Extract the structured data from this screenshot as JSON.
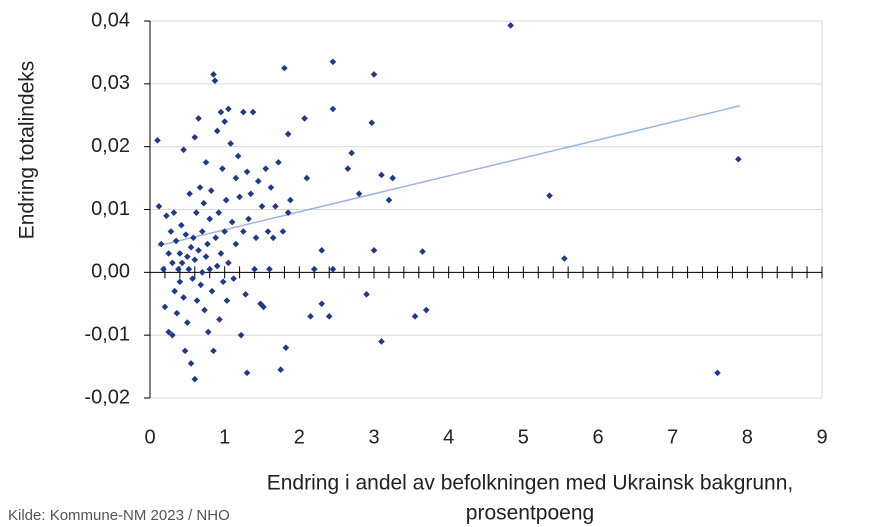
{
  "chart_data": {
    "type": "scatter",
    "ylabel": "Endring totalindeks",
    "xlabel": [
      "Endring i andel av befolkningen med Ukrainsk bakgrunn,",
      "prosentpoeng"
    ],
    "source": "Kilde: Kommune-NM 2023 / NHO",
    "color": "#1f3a8a",
    "grid": true,
    "xlim": [
      0,
      9
    ],
    "ylim": [
      -0.02,
      0.04
    ],
    "xticks": [
      0,
      1,
      2,
      3,
      4,
      5,
      6,
      7,
      8,
      9
    ],
    "x_minor_ticks": [
      0,
      0.2,
      0.4,
      0.6,
      0.8,
      1,
      1.2,
      1.4,
      1.6,
      1.8,
      2,
      2.2,
      2.4,
      2.6,
      2.8,
      3,
      3.2,
      3.4,
      3.6,
      3.8,
      4,
      4.2,
      4.4,
      4.6,
      4.8,
      5,
      5.2,
      5.4,
      5.6,
      5.8,
      6,
      6.2,
      6.4,
      6.6,
      6.8,
      7,
      7.2,
      7.4,
      7.6,
      7.8,
      8,
      8.2,
      8.4,
      8.6,
      8.8,
      9
    ],
    "yticks": [
      {
        "value": -0.02,
        "label": "-0,02"
      },
      {
        "value": -0.01,
        "label": "-0,01"
      },
      {
        "value": 0,
        "label": "0,00"
      },
      {
        "value": 0.01,
        "label": "0,01"
      },
      {
        "value": 0.02,
        "label": "0,02"
      },
      {
        "value": 0.03,
        "label": "0,03"
      },
      {
        "value": 0.04,
        "label": "0,04"
      }
    ],
    "x": [
      0.1,
      0.12,
      0.15,
      0.18,
      0.2,
      0.22,
      0.25,
      0.25,
      0.28,
      0.3,
      0.3,
      0.32,
      0.33,
      0.35,
      0.36,
      0.38,
      0.4,
      0.4,
      0.42,
      0.43,
      0.45,
      0.45,
      0.47,
      0.48,
      0.5,
      0.5,
      0.52,
      0.53,
      0.55,
      0.55,
      0.57,
      0.58,
      0.6,
      0.6,
      0.6,
      0.62,
      0.63,
      0.65,
      0.65,
      0.67,
      0.68,
      0.7,
      0.7,
      0.72,
      0.73,
      0.75,
      0.75,
      0.77,
      0.78,
      0.8,
      0.8,
      0.82,
      0.83,
      0.85,
      0.85,
      0.87,
      0.88,
      0.9,
      0.9,
      0.92,
      0.93,
      0.95,
      0.95,
      0.97,
      0.98,
      1.0,
      1.0,
      1.02,
      1.03,
      1.05,
      1.05,
      1.08,
      1.1,
      1.12,
      1.15,
      1.15,
      1.18,
      1.2,
      1.22,
      1.25,
      1.25,
      1.28,
      1.3,
      1.3,
      1.32,
      1.35,
      1.38,
      1.4,
      1.42,
      1.45,
      1.48,
      1.5,
      1.52,
      1.55,
      1.58,
      1.6,
      1.62,
      1.65,
      1.68,
      1.72,
      1.75,
      1.78,
      1.8,
      1.82,
      1.85,
      1.85,
      1.88,
      2.07,
      2.1,
      2.15,
      2.2,
      2.3,
      2.3,
      2.4,
      2.45,
      2.45,
      2.45,
      2.65,
      2.7,
      2.8,
      2.9,
      2.97,
      3.0,
      3.0,
      3.1,
      3.1,
      3.2,
      3.25,
      3.55,
      3.65,
      3.7,
      4.83,
      5.35,
      5.55,
      7.6,
      7.88
    ],
    "y": [
      0.021,
      0.0105,
      0.0045,
      0.0005,
      -0.0055,
      0.009,
      -0.0095,
      0.003,
      0.0065,
      -0.01,
      0.0015,
      0.0095,
      -0.003,
      0.005,
      -0.0065,
      0.0005,
      0.003,
      -0.0015,
      0.0075,
      0.0015,
      0.0195,
      -0.004,
      -0.0125,
      0.006,
      0.0025,
      -0.008,
      0.0005,
      0.0125,
      -0.0145,
      0.004,
      -0.001,
      0.0055,
      -0.017,
      0.0215,
      0.002,
      0.0095,
      -0.0045,
      0.0245,
      0.0035,
      0.0135,
      -0.002,
      0.0065,
      0.0,
      0.011,
      -0.006,
      0.0175,
      0.0025,
      0.0045,
      -0.0095,
      0.0085,
      0.0005,
      0.013,
      -0.003,
      0.0315,
      -0.0125,
      0.0305,
      0.0055,
      0.0225,
      0.001,
      0.0095,
      -0.0075,
      0.0255,
      0.003,
      0.0165,
      -0.0015,
      0.024,
      0.0065,
      0.0115,
      -0.0045,
      0.026,
      0.0015,
      0.0205,
      0.008,
      -0.001,
      0.015,
      0.0045,
      0.0185,
      0.012,
      -0.01,
      0.0255,
      0.0065,
      -0.0035,
      0.016,
      -0.016,
      0.0085,
      0.0125,
      0.0255,
      0.0005,
      0.0055,
      0.0145,
      -0.005,
      0.0105,
      -0.0055,
      0.0165,
      0.0065,
      0.0005,
      0.0135,
      0.0055,
      0.0105,
      0.0175,
      -0.0155,
      0.0065,
      0.0325,
      -0.012,
      0.022,
      0.0095,
      0.0115,
      0.0245,
      0.015,
      -0.007,
      0.0005,
      -0.005,
      0.0035,
      -0.007,
      0.0335,
      0.026,
      0.0005,
      0.0165,
      0.019,
      0.0125,
      -0.0035,
      0.0238,
      0.0315,
      0.0035,
      0.0155,
      -0.011,
      0.0115,
      0.015,
      -0.007,
      0.0033,
      -0.006,
      0.0393,
      0.0122,
      0.0022,
      -0.016,
      0.018
    ],
    "trendline": {
      "x": [
        0.1,
        7.9
      ],
      "y": [
        0.0042,
        0.0265
      ],
      "color": "#9db3e0"
    }
  }
}
